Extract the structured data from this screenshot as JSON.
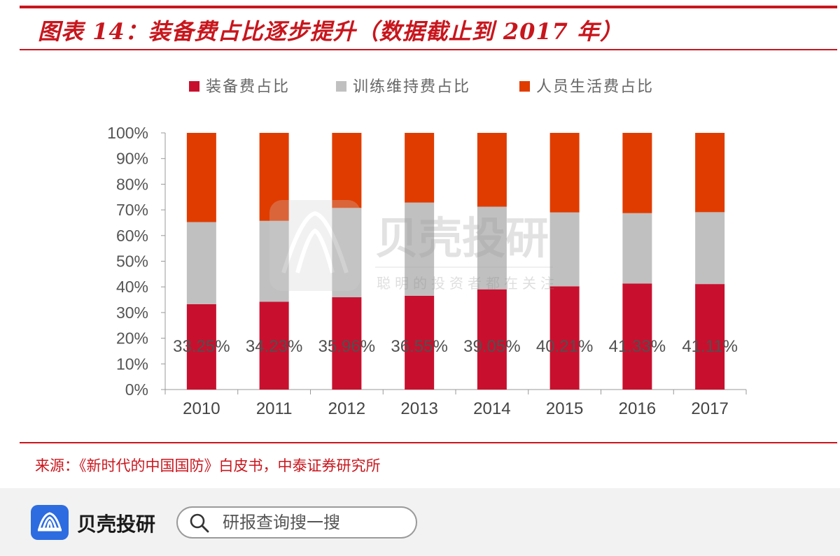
{
  "header": {
    "title": "图表 14：装备费占比逐步提升（数据截止到 2017 年）"
  },
  "watermark": {
    "brand": "贝壳投研",
    "slogan": "聪明的投资者都在关注"
  },
  "chart_data": {
    "type": "bar",
    "stacked": true,
    "categories": [
      "2010",
      "2011",
      "2012",
      "2013",
      "2014",
      "2015",
      "2016",
      "2017"
    ],
    "series": [
      {
        "name": "装备费占比",
        "color": "#c8102e",
        "values": [
          33.25,
          34.23,
          35.96,
          36.55,
          39.05,
          40.21,
          41.33,
          41.11
        ]
      },
      {
        "name": "训练维持费占比",
        "color": "#c0c0c0",
        "values": [
          32.0,
          31.5,
          34.8,
          36.3,
          32.2,
          28.8,
          27.4,
          28.0
        ]
      },
      {
        "name": "人员生活费占比",
        "color": "#e03c00",
        "values": [
          34.75,
          34.27,
          29.24,
          27.15,
          28.75,
          30.99,
          31.27,
          30.89
        ]
      }
    ],
    "data_labels": [
      "33.25%",
      "34.23%",
      "35.96%",
      "36.55%",
      "39.05%",
      "40.21%",
      "41.33%",
      "41.11%"
    ],
    "y_ticks": [
      "0%",
      "10%",
      "20%",
      "30%",
      "40%",
      "50%",
      "60%",
      "70%",
      "80%",
      "90%",
      "100%"
    ],
    "ylim": [
      0,
      100
    ],
    "legend_position": "top",
    "grid": false
  },
  "source": {
    "text": "来源：《新时代的中国国防》白皮书，中泰证券研究所"
  },
  "footer": {
    "app_name": "贝壳投研",
    "search_placeholder": "研报查询搜一搜"
  }
}
